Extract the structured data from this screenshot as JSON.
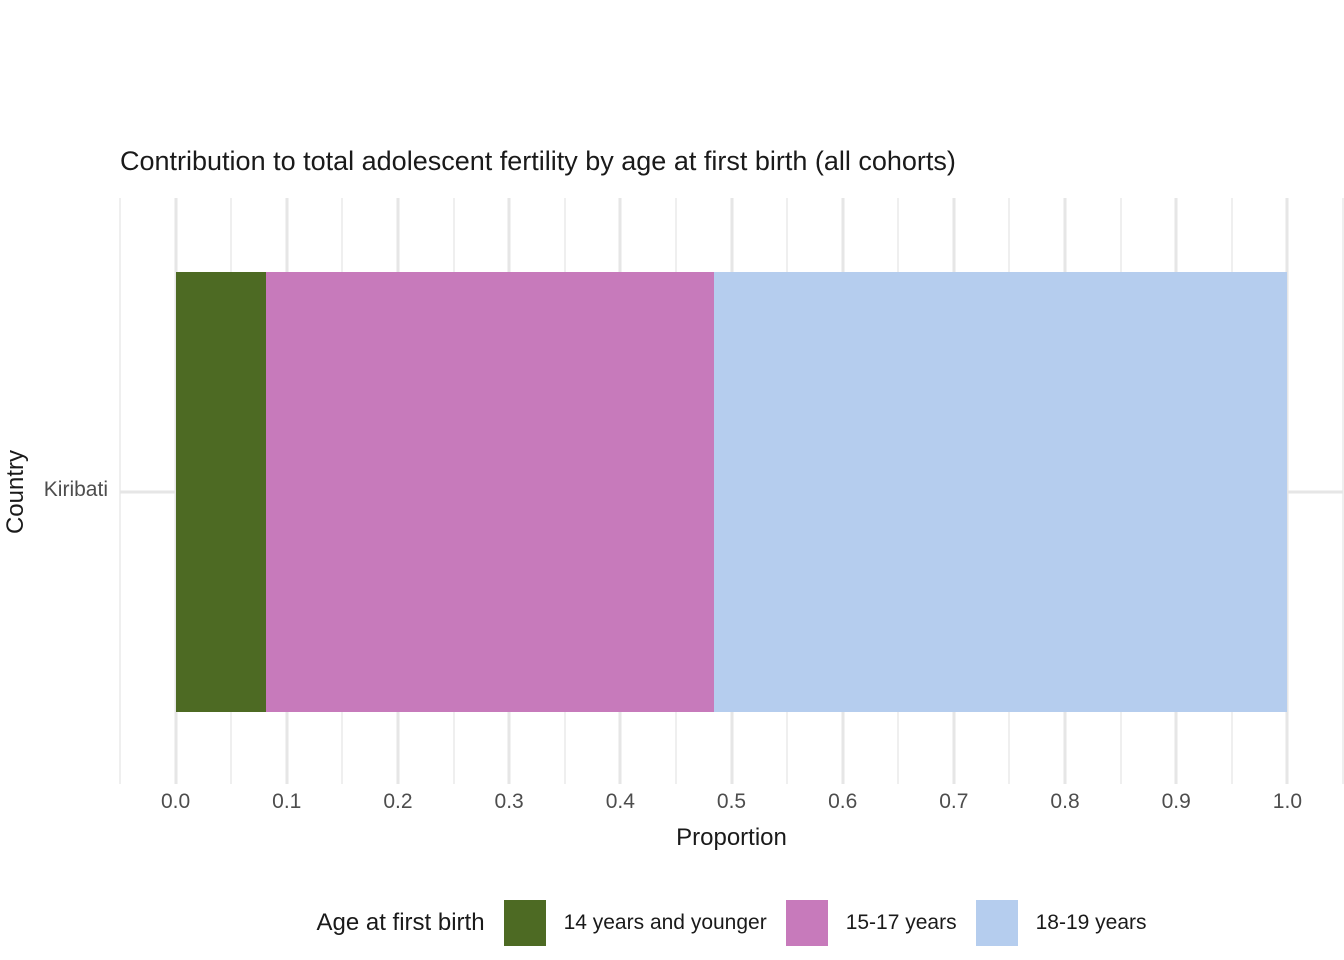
{
  "chart_data": {
    "type": "bar",
    "orientation": "horizontal",
    "stacked": true,
    "title": "Contribution to total adolescent fertility by age at first birth (all cohorts)",
    "xlabel": "Proportion",
    "ylabel": "Country",
    "categories": [
      "Kiribati"
    ],
    "series": [
      {
        "name": "14 years and younger",
        "color": "#4d6a23",
        "values": [
          0.081
        ]
      },
      {
        "name": "15-17 years",
        "color": "#c77abb",
        "values": [
          0.403
        ]
      },
      {
        "name": "18-19 years",
        "color": "#b5cdee",
        "values": [
          0.516
        ]
      }
    ],
    "xlim": [
      -0.05,
      1.05
    ],
    "x_major_ticks": [
      0.0,
      0.1,
      0.2,
      0.3,
      0.4,
      0.5,
      0.6,
      0.7,
      0.8,
      0.9,
      1.0
    ],
    "x_tick_labels": [
      "0.0",
      "0.1",
      "0.2",
      "0.3",
      "0.4",
      "0.5",
      "0.6",
      "0.7",
      "0.8",
      "0.9",
      "1.0"
    ],
    "x_minor_ticks": [
      -0.05,
      0.05,
      0.15,
      0.25,
      0.35,
      0.45,
      0.55,
      0.65,
      0.75,
      0.85,
      0.95,
      1.05
    ],
    "grid": {
      "show": true,
      "major_color": "#e6e6e6",
      "minor_color": "#efefef",
      "background": "#ffffff"
    },
    "legend": {
      "title": "Age at first birth",
      "position": "bottom"
    }
  },
  "colors": {
    "axis_text": "#4d4d4d",
    "title_text": "#1a1a1a"
  }
}
